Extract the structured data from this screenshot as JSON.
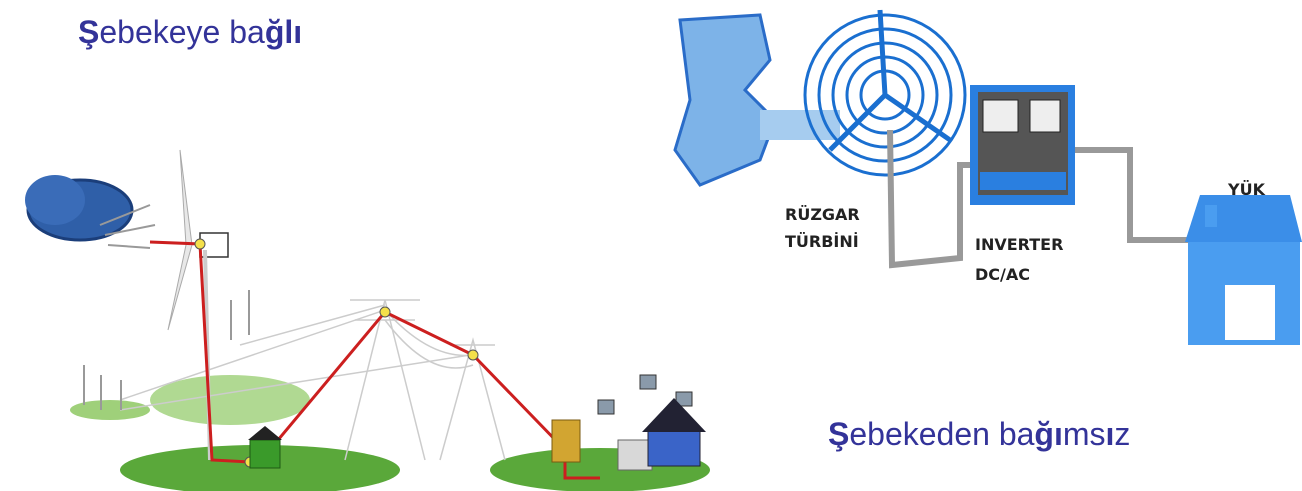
{
  "left_panel": {
    "title": [
      {
        "text": "Ş",
        "bold": true
      },
      {
        "text": "ebekeye ba",
        "bold": false
      },
      {
        "text": "ğlı",
        "bold": true
      }
    ]
  },
  "right_panel": {
    "title": [
      {
        "text": "Ş",
        "bold": true
      },
      {
        "text": "ebekeden ba",
        "bold": false
      },
      {
        "text": "ğı",
        "bold": true
      },
      {
        "text": "ms",
        "bold": false
      },
      {
        "text": "ı",
        "bold": true
      },
      {
        "text": "z",
        "bold": false
      }
    ],
    "labels": {
      "turbine": [
        "RÜZGAR",
        "TÜRBİNİ"
      ],
      "inverter": [
        "INVERTER",
        "DC/AC"
      ],
      "load": "YÜK"
    }
  }
}
